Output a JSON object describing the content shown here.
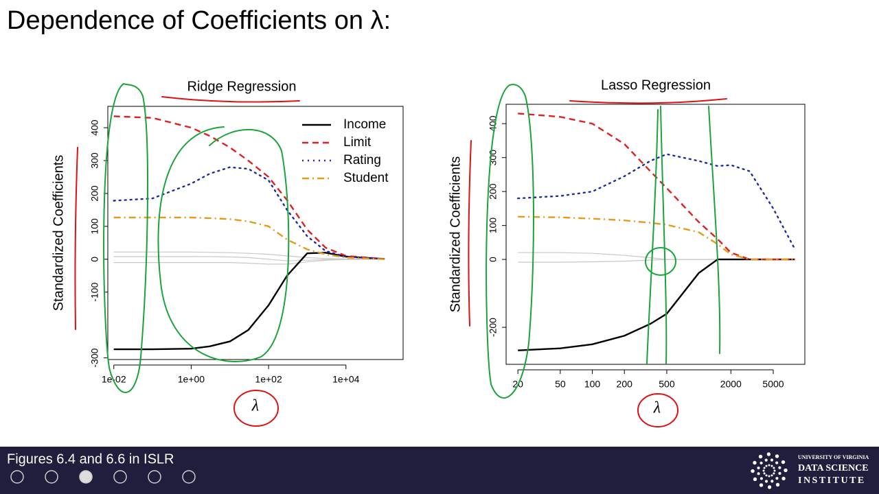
{
  "title": "Dependence of Coefficients on λ:",
  "footer": "Figures 6.4 and 6.6 in ISLR",
  "logo": {
    "line1": "UNIVERSITY OF VIRGINIA",
    "line2": "DATA SCIENCE",
    "line3": "INSTITUTE"
  },
  "chart_data": [
    {
      "type": "line",
      "title": "Ridge Regression",
      "ylabel": "Standardized Coefficients",
      "xlabel": "λ",
      "log_x": true,
      "xlim": [
        0.007,
        300000
      ],
      "ylim": [
        -305,
        465
      ],
      "xticks": [
        {
          "value": 0.01,
          "label": "1e-02"
        },
        {
          "value": 1,
          "label": "1e+00"
        },
        {
          "value": 100,
          "label": "1e+02"
        },
        {
          "value": 10000,
          "label": "1e+04"
        }
      ],
      "yticks": [
        -300,
        -100,
        0,
        100,
        200,
        300,
        400
      ],
      "legend": "upper right",
      "x": [
        0.01,
        0.1,
        1,
        3,
        10,
        30,
        100,
        300,
        1000,
        3000,
        10000,
        100000
      ],
      "series": [
        {
          "color": "#c8c8c8",
          "values": [
            22,
            22,
            22,
            21,
            20,
            18,
            15,
            10,
            5,
            2,
            1,
            0
          ]
        },
        {
          "color": "#c8c8c8",
          "values": [
            -10,
            -10,
            -10,
            -10,
            -10,
            -12,
            -15,
            -15,
            -8,
            -3,
            -1,
            0
          ]
        },
        {
          "color": "#c8c8c8",
          "values": [
            8,
            8,
            8,
            8,
            7,
            5,
            0,
            -5,
            -3,
            -1,
            0,
            0
          ]
        },
        {
          "name": "Income",
          "color": "#000000",
          "dash": "solid",
          "values": [
            -274,
            -274,
            -272,
            -265,
            -250,
            -215,
            -140,
            -50,
            18,
            20,
            8,
            1
          ]
        },
        {
          "name": "Limit",
          "color": "#df2020",
          "dash": "dashed",
          "values": [
            435,
            430,
            400,
            375,
            340,
            300,
            250,
            180,
            90,
            35,
            10,
            1
          ]
        },
        {
          "name": "Rating",
          "color": "#1f2aa0",
          "dash": "dotted",
          "values": [
            178,
            185,
            230,
            260,
            280,
            275,
            240,
            150,
            70,
            25,
            8,
            1
          ]
        },
        {
          "name": "Student",
          "color": "#e69a1a",
          "dash": "dashdot",
          "values": [
            127,
            127,
            127,
            125,
            122,
            115,
            100,
            60,
            30,
            15,
            5,
            0
          ]
        }
      ]
    },
    {
      "type": "line",
      "title": "Lasso Regression",
      "ylabel": "Standardized Coefficients",
      "xlabel": "λ",
      "log_x": true,
      "xlim": [
        15.5,
        9900
      ],
      "ylim": [
        -309,
        457
      ],
      "xticks": [
        20,
        50,
        100,
        200,
        500,
        2000,
        5000
      ],
      "yticks": [
        -200,
        0,
        100,
        200,
        300,
        400
      ],
      "x": [
        20,
        50,
        100,
        200,
        350,
        500,
        1000,
        1500,
        2000,
        3000,
        5000,
        8000
      ],
      "series": [
        {
          "color": "#c8c8c8",
          "values": [
            20,
            20,
            18,
            12,
            5,
            0,
            0,
            0,
            0,
            0,
            0,
            0
          ]
        },
        {
          "color": "#c8c8c8",
          "values": [
            -8,
            -8,
            -7,
            -5,
            -2,
            0,
            0,
            0,
            0,
            0,
            0,
            0
          ]
        },
        {
          "color": "#000000",
          "dash": "solid",
          "values": [
            -268,
            -262,
            -250,
            -225,
            -190,
            -160,
            -40,
            0,
            0,
            0,
            0,
            0
          ]
        },
        {
          "color": "#df2020",
          "dash": "dashed",
          "values": [
            430,
            420,
            400,
            340,
            260,
            210,
            110,
            60,
            20,
            0,
            0,
            0
          ]
        },
        {
          "color": "#1f2aa0",
          "dash": "dotted",
          "values": [
            180,
            187,
            200,
            245,
            290,
            310,
            290,
            275,
            278,
            260,
            150,
            30
          ]
        },
        {
          "color": "#e69a1a",
          "dash": "dashdot",
          "values": [
            126,
            124,
            120,
            115,
            108,
            102,
            80,
            45,
            15,
            0,
            0,
            0
          ]
        }
      ]
    }
  ]
}
